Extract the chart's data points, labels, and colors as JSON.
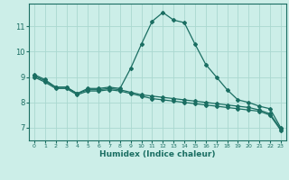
{
  "xlabel": "Humidex (Indice chaleur)",
  "bg_color": "#cceee8",
  "grid_color": "#aad8d0",
  "line_color": "#1a6e62",
  "xlim": [
    -0.5,
    23.5
  ],
  "ylim": [
    6.5,
    11.9
  ],
  "yticks": [
    7,
    8,
    9,
    10,
    11
  ],
  "xticks": [
    0,
    1,
    2,
    3,
    4,
    5,
    6,
    7,
    8,
    9,
    10,
    11,
    12,
    13,
    14,
    15,
    16,
    17,
    18,
    19,
    20,
    21,
    22,
    23
  ],
  "line1_x": [
    0,
    1,
    2,
    3,
    4,
    5,
    6,
    7,
    8,
    9,
    10,
    11,
    12,
    13,
    14,
    15,
    16,
    17,
    18,
    19,
    20,
    21,
    22,
    23
  ],
  "line1_y": [
    9.1,
    8.9,
    8.6,
    8.6,
    8.35,
    8.55,
    8.55,
    8.6,
    8.55,
    9.35,
    10.3,
    11.2,
    11.55,
    11.25,
    11.15,
    10.3,
    9.5,
    9.0,
    8.5,
    8.1,
    8.0,
    7.85,
    7.75,
    7.0
  ],
  "line2_x": [
    0,
    1,
    2,
    3,
    4,
    5,
    6,
    7,
    8,
    9,
    10,
    11,
    12,
    13,
    14,
    15,
    16,
    17,
    18,
    19,
    20,
    21,
    22,
    23
  ],
  "line2_y": [
    9.05,
    8.85,
    8.6,
    8.6,
    8.35,
    8.5,
    8.5,
    8.55,
    8.5,
    8.4,
    8.3,
    8.25,
    8.2,
    8.15,
    8.1,
    8.05,
    8.0,
    7.95,
    7.9,
    7.85,
    7.8,
    7.7,
    7.55,
    6.95
  ],
  "line3_x": [
    0,
    1,
    2,
    3,
    4,
    5,
    6,
    7,
    8,
    9,
    10,
    11,
    12,
    13,
    14,
    15,
    16,
    17,
    18,
    19,
    20,
    21,
    22,
    23
  ],
  "line3_y": [
    9.0,
    8.8,
    8.55,
    8.55,
    8.3,
    8.45,
    8.45,
    8.5,
    8.45,
    8.35,
    8.25,
    8.15,
    8.1,
    8.05,
    8.0,
    7.95,
    7.9,
    7.85,
    7.8,
    7.75,
    7.7,
    7.65,
    7.5,
    6.9
  ]
}
